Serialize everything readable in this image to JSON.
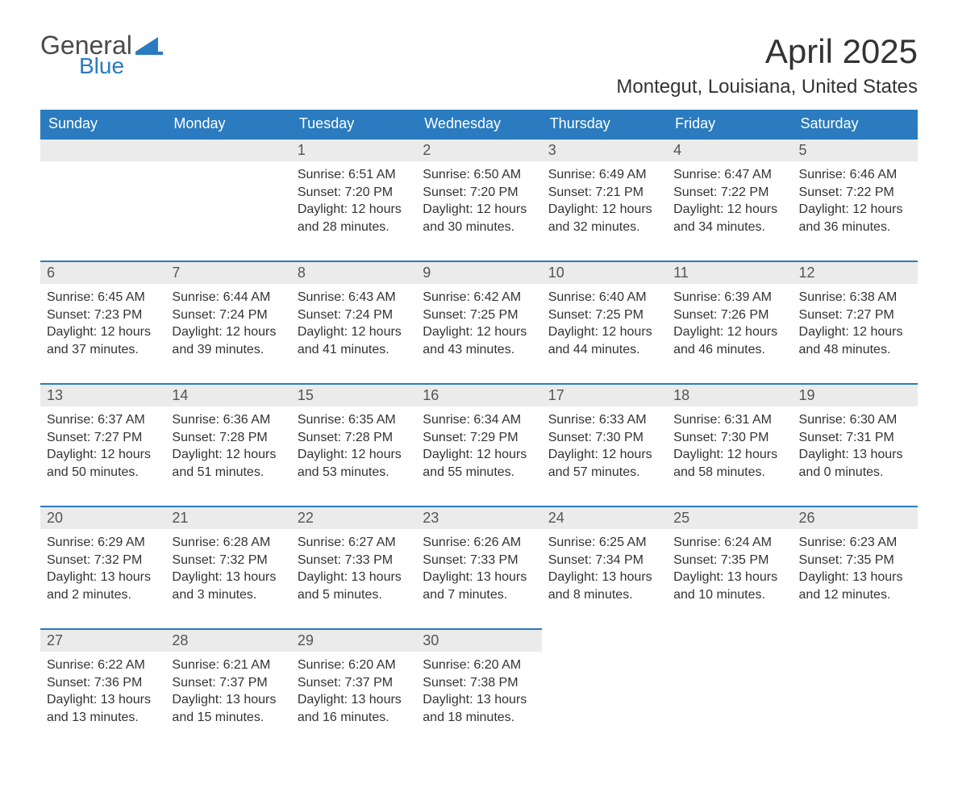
{
  "logo": {
    "general": "General",
    "blue": "Blue",
    "flag_color": "#2a7bbf"
  },
  "title": "April 2025",
  "location": "Montegut, Louisiana, United States",
  "colors": {
    "header_bg": "#2a7bbf",
    "header_text": "#ffffff",
    "band_bg": "#ebebeb",
    "band_text": "#555555",
    "body_text": "#333333",
    "page_bg": "#ffffff",
    "row_divider": "#2a7bbf"
  },
  "fonts": {
    "title_pt": 42,
    "location_pt": 24,
    "dayheader_pt": 18,
    "daynum_pt": 18,
    "body_pt": 16
  },
  "day_headers": [
    "Sunday",
    "Monday",
    "Tuesday",
    "Wednesday",
    "Thursday",
    "Friday",
    "Saturday"
  ],
  "weeks": [
    [
      null,
      null,
      {
        "n": "1",
        "sr": "Sunrise: 6:51 AM",
        "ss": "Sunset: 7:20 PM",
        "dl": "Daylight: 12 hours and 28 minutes."
      },
      {
        "n": "2",
        "sr": "Sunrise: 6:50 AM",
        "ss": "Sunset: 7:20 PM",
        "dl": "Daylight: 12 hours and 30 minutes."
      },
      {
        "n": "3",
        "sr": "Sunrise: 6:49 AM",
        "ss": "Sunset: 7:21 PM",
        "dl": "Daylight: 12 hours and 32 minutes."
      },
      {
        "n": "4",
        "sr": "Sunrise: 6:47 AM",
        "ss": "Sunset: 7:22 PM",
        "dl": "Daylight: 12 hours and 34 minutes."
      },
      {
        "n": "5",
        "sr": "Sunrise: 6:46 AM",
        "ss": "Sunset: 7:22 PM",
        "dl": "Daylight: 12 hours and 36 minutes."
      }
    ],
    [
      {
        "n": "6",
        "sr": "Sunrise: 6:45 AM",
        "ss": "Sunset: 7:23 PM",
        "dl": "Daylight: 12 hours and 37 minutes."
      },
      {
        "n": "7",
        "sr": "Sunrise: 6:44 AM",
        "ss": "Sunset: 7:24 PM",
        "dl": "Daylight: 12 hours and 39 minutes."
      },
      {
        "n": "8",
        "sr": "Sunrise: 6:43 AM",
        "ss": "Sunset: 7:24 PM",
        "dl": "Daylight: 12 hours and 41 minutes."
      },
      {
        "n": "9",
        "sr": "Sunrise: 6:42 AM",
        "ss": "Sunset: 7:25 PM",
        "dl": "Daylight: 12 hours and 43 minutes."
      },
      {
        "n": "10",
        "sr": "Sunrise: 6:40 AM",
        "ss": "Sunset: 7:25 PM",
        "dl": "Daylight: 12 hours and 44 minutes."
      },
      {
        "n": "11",
        "sr": "Sunrise: 6:39 AM",
        "ss": "Sunset: 7:26 PM",
        "dl": "Daylight: 12 hours and 46 minutes."
      },
      {
        "n": "12",
        "sr": "Sunrise: 6:38 AM",
        "ss": "Sunset: 7:27 PM",
        "dl": "Daylight: 12 hours and 48 minutes."
      }
    ],
    [
      {
        "n": "13",
        "sr": "Sunrise: 6:37 AM",
        "ss": "Sunset: 7:27 PM",
        "dl": "Daylight: 12 hours and 50 minutes."
      },
      {
        "n": "14",
        "sr": "Sunrise: 6:36 AM",
        "ss": "Sunset: 7:28 PM",
        "dl": "Daylight: 12 hours and 51 minutes."
      },
      {
        "n": "15",
        "sr": "Sunrise: 6:35 AM",
        "ss": "Sunset: 7:28 PM",
        "dl": "Daylight: 12 hours and 53 minutes."
      },
      {
        "n": "16",
        "sr": "Sunrise: 6:34 AM",
        "ss": "Sunset: 7:29 PM",
        "dl": "Daylight: 12 hours and 55 minutes."
      },
      {
        "n": "17",
        "sr": "Sunrise: 6:33 AM",
        "ss": "Sunset: 7:30 PM",
        "dl": "Daylight: 12 hours and 57 minutes."
      },
      {
        "n": "18",
        "sr": "Sunrise: 6:31 AM",
        "ss": "Sunset: 7:30 PM",
        "dl": "Daylight: 12 hours and 58 minutes."
      },
      {
        "n": "19",
        "sr": "Sunrise: 6:30 AM",
        "ss": "Sunset: 7:31 PM",
        "dl": "Daylight: 13 hours and 0 minutes."
      }
    ],
    [
      {
        "n": "20",
        "sr": "Sunrise: 6:29 AM",
        "ss": "Sunset: 7:32 PM",
        "dl": "Daylight: 13 hours and 2 minutes."
      },
      {
        "n": "21",
        "sr": "Sunrise: 6:28 AM",
        "ss": "Sunset: 7:32 PM",
        "dl": "Daylight: 13 hours and 3 minutes."
      },
      {
        "n": "22",
        "sr": "Sunrise: 6:27 AM",
        "ss": "Sunset: 7:33 PM",
        "dl": "Daylight: 13 hours and 5 minutes."
      },
      {
        "n": "23",
        "sr": "Sunrise: 6:26 AM",
        "ss": "Sunset: 7:33 PM",
        "dl": "Daylight: 13 hours and 7 minutes."
      },
      {
        "n": "24",
        "sr": "Sunrise: 6:25 AM",
        "ss": "Sunset: 7:34 PM",
        "dl": "Daylight: 13 hours and 8 minutes."
      },
      {
        "n": "25",
        "sr": "Sunrise: 6:24 AM",
        "ss": "Sunset: 7:35 PM",
        "dl": "Daylight: 13 hours and 10 minutes."
      },
      {
        "n": "26",
        "sr": "Sunrise: 6:23 AM",
        "ss": "Sunset: 7:35 PM",
        "dl": "Daylight: 13 hours and 12 minutes."
      }
    ],
    [
      {
        "n": "27",
        "sr": "Sunrise: 6:22 AM",
        "ss": "Sunset: 7:36 PM",
        "dl": "Daylight: 13 hours and 13 minutes."
      },
      {
        "n": "28",
        "sr": "Sunrise: 6:21 AM",
        "ss": "Sunset: 7:37 PM",
        "dl": "Daylight: 13 hours and 15 minutes."
      },
      {
        "n": "29",
        "sr": "Sunrise: 6:20 AM",
        "ss": "Sunset: 7:37 PM",
        "dl": "Daylight: 13 hours and 16 minutes."
      },
      {
        "n": "30",
        "sr": "Sunrise: 6:20 AM",
        "ss": "Sunset: 7:38 PM",
        "dl": "Daylight: 13 hours and 18 minutes."
      },
      null,
      null,
      null
    ]
  ]
}
